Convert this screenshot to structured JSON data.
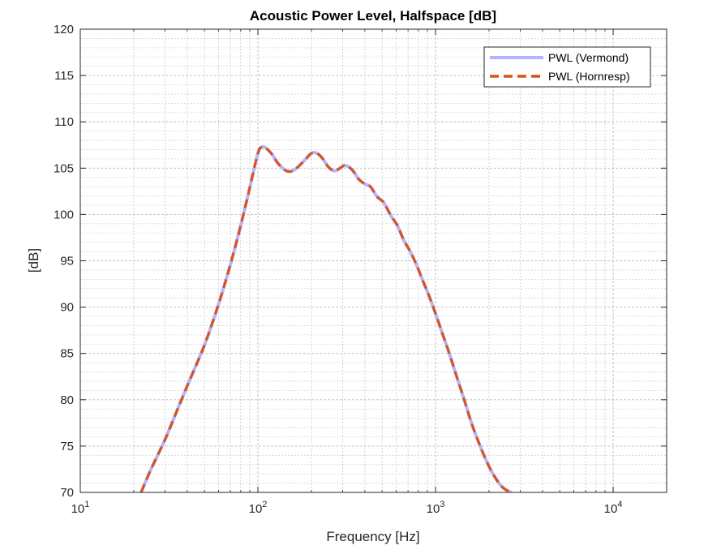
{
  "chart_data": {
    "type": "line",
    "title": "Acoustic Power Level, Halfspace [dB]",
    "xlabel": "Frequency [Hz]",
    "ylabel": "[dB]",
    "xscale": "log",
    "xlim": [
      10,
      20000
    ],
    "ylim": [
      70,
      120
    ],
    "x_ticks": [
      10,
      100,
      1000,
      10000
    ],
    "x_tick_labels": [
      {
        "base": "10",
        "exp": "1"
      },
      {
        "base": "10",
        "exp": "2"
      },
      {
        "base": "10",
        "exp": "3"
      },
      {
        "base": "10",
        "exp": "4"
      }
    ],
    "y_ticks": [
      70,
      75,
      80,
      85,
      90,
      95,
      100,
      105,
      110,
      115,
      120
    ],
    "y_tick_labels": [
      "70",
      "75",
      "80",
      "85",
      "90",
      "95",
      "100",
      "105",
      "110",
      "115",
      "120"
    ],
    "grid": true,
    "minor_grid": true,
    "legend_position": "top-right",
    "series": [
      {
        "name": "PWL (Vermond)",
        "color": "#b3b3ff",
        "style": "solid",
        "x": [
          22,
          25,
          30,
          35,
          40,
          50,
          60,
          70,
          80,
          90,
          100,
          106,
          112,
          120,
          130,
          145,
          160,
          180,
          200,
          215,
          230,
          250,
          270,
          290,
          310,
          340,
          370,
          400,
          430,
          470,
          510,
          560,
          610,
          660,
          720,
          780,
          850,
          920,
          1000,
          1100,
          1200,
          1300,
          1450,
          1600,
          1800,
          2000,
          2200,
          2400,
          2650
        ],
        "y": [
          70,
          72.5,
          75.7,
          78.8,
          81.5,
          85.9,
          90.3,
          94.6,
          98.8,
          102.9,
          106.6,
          107.3,
          107.1,
          106.5,
          105.5,
          104.7,
          104.8,
          105.7,
          106.6,
          106.6,
          106.1,
          105.1,
          104.7,
          105.0,
          105.3,
          104.8,
          103.8,
          103.3,
          103.0,
          101.9,
          101.3,
          99.9,
          98.8,
          97.3,
          96.0,
          94.6,
          92.8,
          91.2,
          89.3,
          87.0,
          84.9,
          82.8,
          80.0,
          77.4,
          74.8,
          72.8,
          71.4,
          70.5,
          70
        ]
      },
      {
        "name": "PWL (Hornresp)",
        "color": "#d95319",
        "style": "dashed",
        "x": [
          22,
          25,
          30,
          35,
          40,
          50,
          60,
          70,
          80,
          90,
          100,
          106,
          112,
          120,
          130,
          145,
          160,
          180,
          200,
          215,
          230,
          250,
          270,
          290,
          310,
          340,
          370,
          400,
          430,
          470,
          510,
          560,
          610,
          660,
          720,
          780,
          850,
          920,
          1000,
          1100,
          1200,
          1300,
          1450,
          1600,
          1800,
          2000,
          2200,
          2400,
          2650
        ],
        "y": [
          70,
          72.5,
          75.7,
          78.8,
          81.5,
          85.9,
          90.3,
          94.6,
          98.8,
          102.9,
          106.6,
          107.3,
          107.1,
          106.5,
          105.5,
          104.7,
          104.8,
          105.7,
          106.6,
          106.6,
          106.1,
          105.1,
          104.7,
          105.0,
          105.3,
          104.8,
          103.8,
          103.3,
          103.0,
          101.9,
          101.3,
          99.9,
          98.8,
          97.3,
          96.0,
          94.6,
          92.8,
          91.2,
          89.3,
          87.0,
          84.9,
          82.8,
          80.0,
          77.4,
          74.8,
          72.8,
          71.4,
          70.5,
          70
        ]
      }
    ]
  }
}
